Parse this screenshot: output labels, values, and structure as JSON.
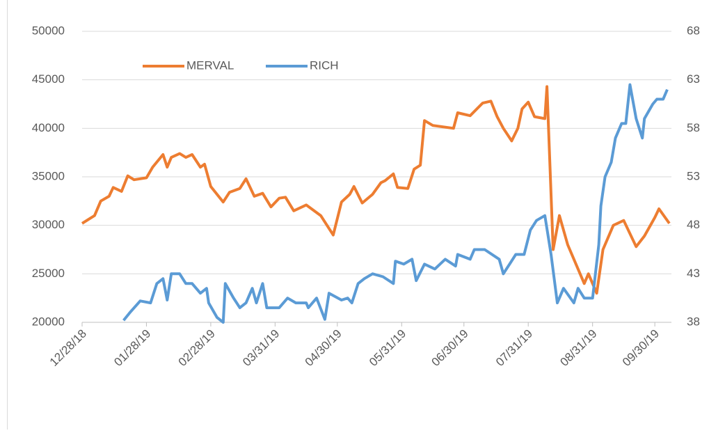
{
  "chart_data": {
    "type": "line",
    "grid": true,
    "legend": "top",
    "xlim": [
      "12/28/18",
      "10/08/19"
    ],
    "xticks": [
      "12/28/18",
      "01/28/19",
      "02/28/19",
      "03/31/19",
      "04/30/19",
      "05/31/19",
      "06/30/19",
      "07/31/19",
      "08/31/19",
      "09/30/19"
    ],
    "ylim": [
      20000,
      50000
    ],
    "yticks": [
      20000,
      25000,
      30000,
      35000,
      40000,
      45000,
      50000
    ],
    "y2lim": [
      38,
      68
    ],
    "y2ticks": [
      38,
      43,
      48,
      53,
      58,
      63,
      68
    ],
    "series": [
      {
        "name": "MERVAL",
        "color": "#ed7d31",
        "axis": "y",
        "x": [
          "12/28/18",
          "01/03/19",
          "01/06/19",
          "01/10/19",
          "01/12/19",
          "01/16/19",
          "01/19/19",
          "01/22/19",
          "01/28/19",
          "01/31/19",
          "02/05/19",
          "02/07/19",
          "02/09/19",
          "02/13/19",
          "02/16/19",
          "02/19/19",
          "02/23/19",
          "02/25/19",
          "02/28/19",
          "03/06/19",
          "03/09/19",
          "03/14/19",
          "03/17/19",
          "03/21/19",
          "03/25/19",
          "03/29/19",
          "04/02/19",
          "04/05/19",
          "04/09/19",
          "04/15/19",
          "04/22/19",
          "04/28/19",
          "05/02/19",
          "05/06/19",
          "05/08/19",
          "05/12/19",
          "05/17/19",
          "05/21/19",
          "05/23/19",
          "05/27/19",
          "05/29/19",
          "06/03/19",
          "06/06/19",
          "06/09/19",
          "06/11/19",
          "06/15/19",
          "06/25/19",
          "06/27/19",
          "07/03/19",
          "07/09/19",
          "07/13/19",
          "07/16/19",
          "07/19/19",
          "07/23/19",
          "07/26/19",
          "07/28/19",
          "07/31/19",
          "08/03/19",
          "08/08/19",
          "08/09/19",
          "08/12/19",
          "08/15/19",
          "08/19/19",
          "08/22/19",
          "08/27/19",
          "08/29/19",
          "09/02/19",
          "09/05/19",
          "09/10/19",
          "09/15/19",
          "09/21/19",
          "09/25/19",
          "09/30/19",
          "10/02/19",
          "10/07/19"
        ],
        "values": [
          30200,
          31000,
          32500,
          33000,
          33900,
          33500,
          35100,
          34700,
          34900,
          36000,
          37300,
          36000,
          37000,
          37400,
          37000,
          37300,
          36000,
          36300,
          34000,
          32400,
          33400,
          33800,
          34800,
          33000,
          33300,
          31900,
          32800,
          32900,
          31500,
          32100,
          31000,
          29000,
          32400,
          33200,
          34000,
          32300,
          33200,
          34400,
          34600,
          35300,
          33900,
          33800,
          35800,
          36200,
          40800,
          40300,
          40000,
          41600,
          41300,
          42600,
          42800,
          41200,
          40000,
          38700,
          40000,
          42000,
          42700,
          41200,
          41000,
          44300,
          27500,
          31000,
          28000,
          26500,
          24000,
          25000,
          23000,
          27500,
          30000,
          30500,
          27800,
          28900,
          30800,
          31700,
          30200
        ]
      },
      {
        "name": "RICH",
        "color": "#5b9bd5",
        "axis": "y2",
        "x": [
          "01/17/19",
          "01/20/19",
          "01/25/19",
          "01/30/19",
          "02/02/19",
          "02/05/19",
          "02/07/19",
          "02/09/19",
          "02/13/19",
          "02/16/19",
          "02/19/19",
          "02/23/19",
          "02/26/19",
          "02/27/19",
          "03/03/19",
          "03/06/19",
          "03/07/19",
          "03/11/19",
          "03/14/19",
          "03/17/19",
          "03/20/19",
          "03/22/19",
          "03/25/19",
          "03/27/19",
          "04/02/19",
          "04/06/19",
          "04/10/19",
          "04/15/19",
          "04/16/19",
          "04/20/19",
          "04/24/19",
          "04/26/19",
          "05/02/19",
          "05/05/19",
          "05/07/19",
          "05/10/19",
          "05/13/19",
          "05/17/19",
          "05/22/19",
          "05/27/19",
          "05/28/19",
          "06/01/19",
          "06/05/19",
          "06/07/19",
          "06/11/19",
          "06/16/19",
          "06/21/19",
          "06/26/19",
          "06/27/19",
          "07/03/19",
          "07/05/19",
          "07/10/19",
          "07/17/19",
          "07/19/19",
          "07/22/19",
          "07/25/19",
          "07/29/19",
          "08/01/19",
          "08/04/19",
          "08/08/19",
          "08/11/19",
          "08/14/19",
          "08/17/19",
          "08/22/19",
          "08/24/19",
          "08/27/19",
          "08/31/19",
          "09/03/19",
          "09/04/19",
          "09/06/19",
          "09/09/19",
          "09/11/19",
          "09/14/19",
          "09/16/19",
          "09/18/19",
          "09/21/19",
          "09/24/19",
          "09/25/19",
          "09/29/19",
          "10/01/19",
          "10/04/19",
          "10/06/19"
        ],
        "values": [
          38.2,
          39,
          40.2,
          40,
          42,
          42.5,
          40.3,
          43,
          43,
          42,
          42,
          41,
          41.5,
          40,
          38.5,
          38,
          42,
          40.5,
          39.5,
          40,
          41.5,
          40,
          42,
          39.5,
          39.5,
          40.5,
          40,
          40,
          39.5,
          40.5,
          38.3,
          41,
          40.3,
          40.5,
          40,
          42,
          42.5,
          43,
          42.7,
          42,
          44.3,
          44,
          44.5,
          42.3,
          44,
          43.5,
          44.5,
          43.8,
          45,
          44.5,
          45.5,
          45.5,
          44.5,
          43,
          44,
          45,
          45,
          47.5,
          48.5,
          49,
          45,
          40,
          41.5,
          40,
          41.5,
          40.5,
          40.5,
          46,
          50,
          53,
          54.5,
          57,
          58.5,
          58.5,
          62.5,
          59,
          57,
          59,
          60.5,
          61,
          61,
          62
        ]
      }
    ]
  }
}
